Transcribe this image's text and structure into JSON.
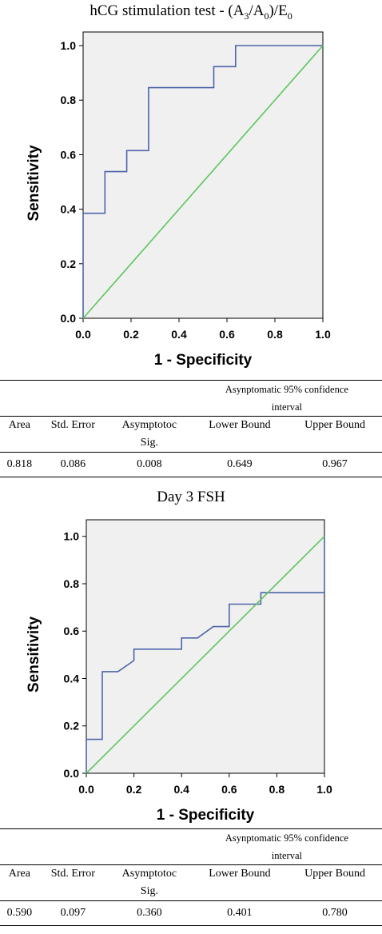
{
  "chart_data": [
    {
      "type": "line",
      "title_parts": [
        "hCG stimulation test - (A",
        "3",
        "/A",
        "0",
        ")/E",
        "0"
      ],
      "xlabel": "1 - Specificity",
      "ylabel": "Sensitivity",
      "xlim": [
        0,
        1
      ],
      "ylim": [
        0,
        1.05
      ],
      "xticks": [
        "0.0",
        "0.2",
        "0.4",
        "0.6",
        "0.8",
        "1.0"
      ],
      "yticks": [
        "0.0",
        "0.2",
        "0.4",
        "0.6",
        "0.8",
        "1.0"
      ],
      "series": [
        {
          "color": "#4f64a8",
          "x": [
            0,
            0,
            0.091,
            0.091,
            0.182,
            0.182,
            0.273,
            0.273,
            0.545,
            0.545,
            0.636,
            0.636,
            1.0
          ],
          "y": [
            0,
            0.385,
            0.385,
            0.538,
            0.538,
            0.615,
            0.615,
            0.846,
            0.846,
            0.923,
            0.923,
            1.0,
            1.0
          ]
        },
        {
          "color": "#5ec65e",
          "x": [
            0,
            1
          ],
          "y": [
            0,
            1
          ]
        }
      ]
    },
    {
      "type": "line",
      "title": "Day 3 FSH",
      "xlabel": "1 - Specificity",
      "ylabel": "Sensitivity",
      "xlim": [
        0,
        1
      ],
      "ylim": [
        0,
        1.07
      ],
      "xticks": [
        "0.0",
        "0.2",
        "0.4",
        "0.6",
        "0.8",
        "1.0"
      ],
      "yticks": [
        "0.0",
        "0.2",
        "0.4",
        "0.6",
        "0.8",
        "1.0"
      ],
      "series": [
        {
          "color": "#4f64a8",
          "x": [
            0,
            0,
            0.067,
            0.067,
            0.133,
            0.2,
            0.2,
            0.4,
            0.4,
            0.467,
            0.533,
            0.6,
            0.6,
            0.733,
            0.733,
            1.0,
            1.0
          ],
          "y": [
            0,
            0.143,
            0.143,
            0.429,
            0.429,
            0.476,
            0.524,
            0.524,
            0.571,
            0.571,
            0.619,
            0.619,
            0.714,
            0.714,
            0.762,
            0.762,
            1.0
          ]
        },
        {
          "color": "#5ec65e",
          "x": [
            0,
            1
          ],
          "y": [
            0,
            1
          ]
        }
      ]
    }
  ],
  "tables": [
    {
      "group_header_line1": "Asynptomatic 95% confidence",
      "group_header_line2": "interval",
      "headers": [
        "Area",
        "Std. Error",
        "Asymptotoc",
        "Lower Bound",
        "Upper Bound"
      ],
      "header_sub": "Sig.",
      "values": [
        "0.818",
        "0.086",
        "0.008",
        "0.649",
        "0.967"
      ]
    },
    {
      "group_header_line1": "Asynptomatic 95% confidence",
      "group_header_line2": "interval",
      "headers": [
        "Area",
        "Std. Error",
        "Asymptotoc",
        "Lower Bound",
        "Upper Bound"
      ],
      "header_sub": "Sig.",
      "values": [
        "0.590",
        "0.097",
        "0.360",
        "0.401",
        "0.780"
      ]
    }
  ],
  "colors": {
    "plot_bg": "#f0f0f0",
    "roc": "#4f64a8",
    "reference": "#5ec65e"
  }
}
